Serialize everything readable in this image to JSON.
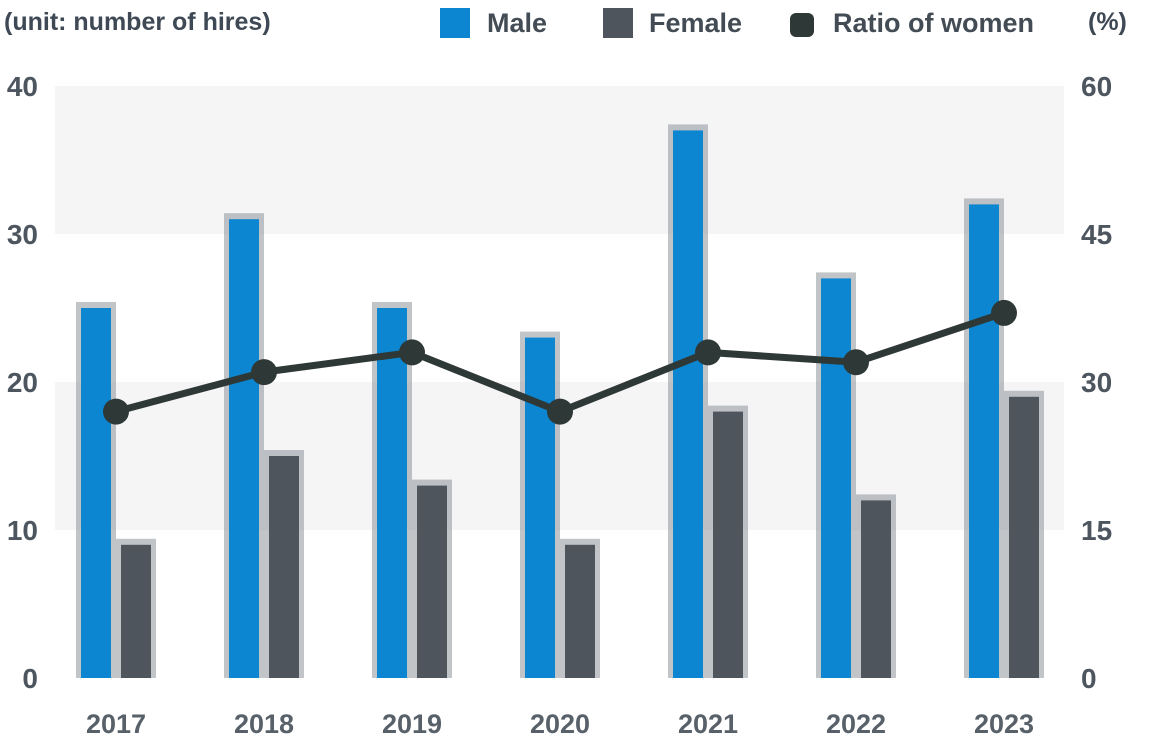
{
  "header": {
    "title": "(unit: number of hires)",
    "unit_right": "(%)"
  },
  "legend": [
    {
      "label": "Male",
      "marker": "square",
      "color": "#0d86d1"
    },
    {
      "label": "Female",
      "marker": "square",
      "color": "#4e555d"
    },
    {
      "label": "Ratio of women",
      "marker": "rounded-square",
      "color": "#2e3937"
    }
  ],
  "chart_data": {
    "type": "bar",
    "subtype": "grouped-bars-with-line",
    "title": "(unit: number of hires)",
    "categories": [
      "2017",
      "2018",
      "2019",
      "2020",
      "2021",
      "2022",
      "2023"
    ],
    "series": [
      {
        "name": "Male",
        "type": "bar",
        "axis": "left",
        "color": "#0d86d1",
        "values": [
          25,
          31,
          25,
          23,
          37,
          27,
          32
        ]
      },
      {
        "name": "Female",
        "type": "bar",
        "axis": "left",
        "color": "#4e555d",
        "values": [
          9,
          15,
          13,
          9,
          18,
          12,
          19
        ]
      },
      {
        "name": "Ratio of women",
        "type": "line",
        "axis": "right",
        "color": "#2e3937",
        "values": [
          27,
          31,
          33,
          27,
          33,
          32,
          37
        ]
      }
    ],
    "left_axis": {
      "label": "number of hires",
      "ticks": [
        0,
        10,
        20,
        30,
        40
      ],
      "range": [
        0,
        40
      ]
    },
    "right_axis": {
      "label": "%",
      "ticks": [
        0,
        15,
        30,
        45,
        60
      ],
      "range": [
        0,
        60
      ]
    },
    "bands": [
      [
        30,
        40
      ],
      [
        10,
        20
      ]
    ],
    "band_color": "#f5f5f6",
    "bar_shadow_color": "rgba(110,117,124,0.42)",
    "grid": false,
    "legend_position": "top"
  }
}
